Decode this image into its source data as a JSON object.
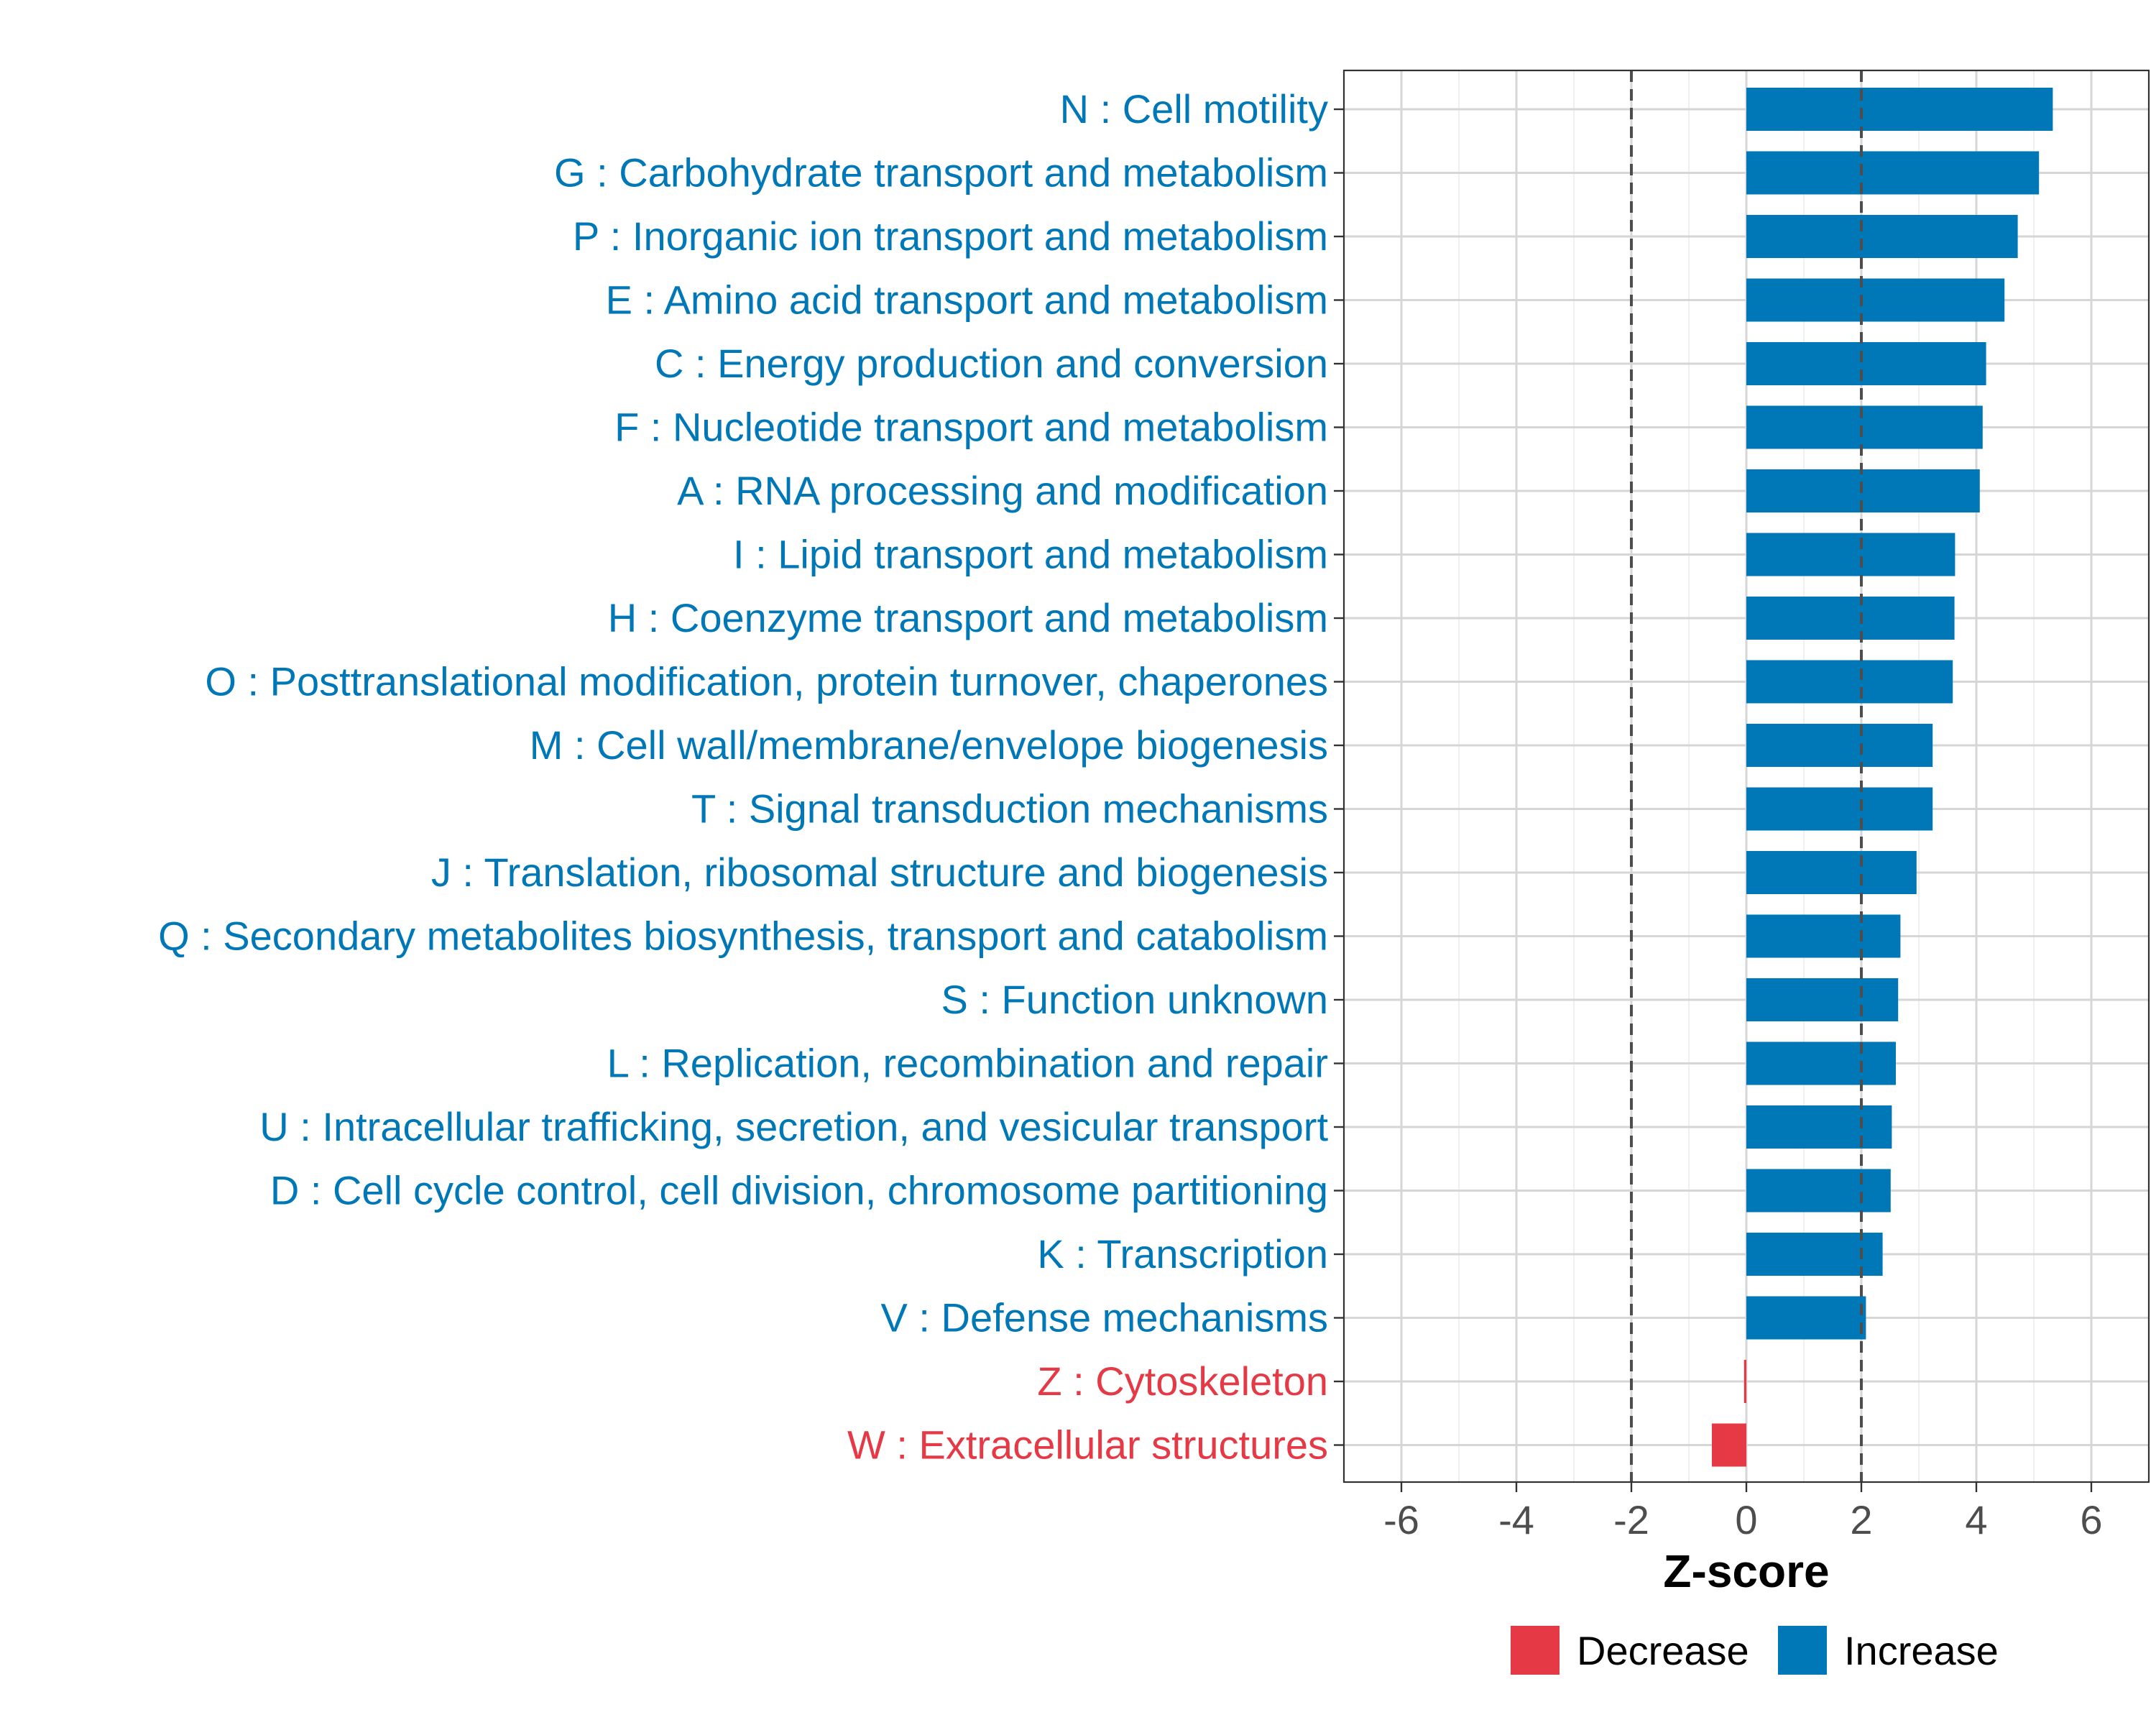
{
  "chart_data": {
    "type": "bar",
    "orientation": "horizontal",
    "xlabel": "Z-score",
    "xlim": [
      -7,
      7
    ],
    "xticks": [
      -6,
      -4,
      -2,
      0,
      2,
      4,
      6
    ],
    "xtick_labels": [
      "-6",
      "-4",
      "-2",
      "0",
      "2",
      "4",
      "6"
    ],
    "threshold_lines": [
      -2,
      2
    ],
    "grid": true,
    "legend_position": "bottom",
    "colors": {
      "Decrease": "#E63946",
      "Increase": "#0077B6"
    },
    "categories": [
      {
        "label": "N : Cell motility",
        "value": 5.33,
        "direction": "Increase"
      },
      {
        "label": "G : Carbohydrate transport and metabolism",
        "value": 5.09,
        "direction": "Increase"
      },
      {
        "label": "P : Inorganic ion transport and metabolism",
        "value": 4.72,
        "direction": "Increase"
      },
      {
        "label": "E : Amino acid transport and metabolism",
        "value": 4.49,
        "direction": "Increase"
      },
      {
        "label": "C : Energy production and conversion",
        "value": 4.17,
        "direction": "Increase"
      },
      {
        "label": "F : Nucleotide transport and metabolism",
        "value": 4.11,
        "direction": "Increase"
      },
      {
        "label": "A : RNA processing and modification",
        "value": 4.06,
        "direction": "Increase"
      },
      {
        "label": "I : Lipid transport and metabolism",
        "value": 3.63,
        "direction": "Increase"
      },
      {
        "label": "H : Coenzyme transport and metabolism",
        "value": 3.62,
        "direction": "Increase"
      },
      {
        "label": "O : Posttranslational modification, protein turnover, chaperones",
        "value": 3.59,
        "direction": "Increase"
      },
      {
        "label": "M : Cell wall/membrane/envelope biogenesis",
        "value": 3.24,
        "direction": "Increase"
      },
      {
        "label": "T : Signal transduction mechanisms",
        "value": 3.24,
        "direction": "Increase"
      },
      {
        "label": "J : Translation, ribosomal structure and biogenesis",
        "value": 2.96,
        "direction": "Increase"
      },
      {
        "label": "Q : Secondary metabolites biosynthesis, transport and catabolism",
        "value": 2.68,
        "direction": "Increase"
      },
      {
        "label": "S : Function unknown",
        "value": 2.64,
        "direction": "Increase"
      },
      {
        "label": "L : Replication, recombination and repair",
        "value": 2.6,
        "direction": "Increase"
      },
      {
        "label": "U : Intracellular trafficking, secretion, and vesicular transport",
        "value": 2.53,
        "direction": "Increase"
      },
      {
        "label": "D : Cell cycle control, cell division, chromosome partitioning",
        "value": 2.51,
        "direction": "Increase"
      },
      {
        "label": "K : Transcription",
        "value": 2.37,
        "direction": "Increase"
      },
      {
        "label": "V : Defense mechanisms",
        "value": 2.08,
        "direction": "Increase"
      },
      {
        "label": "Z : Cytoskeleton",
        "value": -0.04,
        "direction": "Decrease"
      },
      {
        "label": "W : Extracellular structures",
        "value": -0.6,
        "direction": "Decrease"
      }
    ],
    "legend": [
      {
        "label": "Decrease",
        "color": "#E63946"
      },
      {
        "label": "Increase",
        "color": "#0077B6"
      }
    ]
  }
}
